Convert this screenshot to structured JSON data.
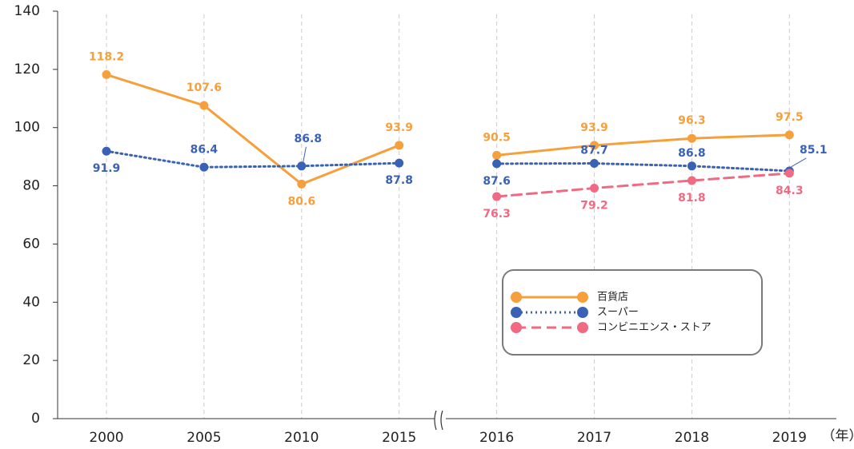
{
  "chart_data": {
    "type": "line",
    "categories": [
      "2000",
      "2005",
      "2010",
      "2015",
      "2016",
      "2017",
      "2018",
      "2019"
    ],
    "axis_break_after": "2015",
    "x_unit": "（年）",
    "series": [
      {
        "name": "百貨店",
        "color": "#f5a03c",
        "dash": "solid",
        "values": [
          118.2,
          107.6,
          80.6,
          93.9,
          90.5,
          93.9,
          96.3,
          97.5
        ]
      },
      {
        "name": "スーパー",
        "color": "#3a62b4",
        "dash": "dotted",
        "values": [
          91.9,
          86.4,
          86.8,
          87.8,
          87.6,
          87.7,
          86.8,
          85.1
        ]
      },
      {
        "name": "コンビニエンス・ストア",
        "color": "#ef6a82",
        "dash": "dashed",
        "values": [
          null,
          null,
          null,
          null,
          76.3,
          79.2,
          81.8,
          84.3
        ]
      }
    ],
    "ylim": [
      0,
      140
    ],
    "yticks": [
      0,
      20,
      40,
      60,
      80,
      100,
      120,
      140
    ],
    "grid": true
  }
}
